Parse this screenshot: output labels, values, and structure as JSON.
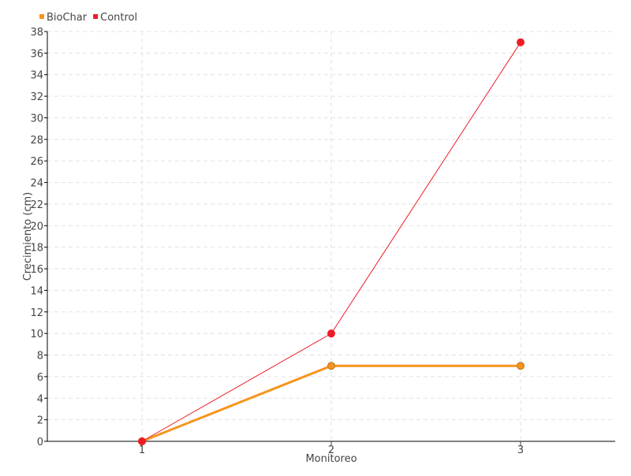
{
  "chart_data": {
    "type": "line",
    "title": "",
    "xlabel": "Monitoreo",
    "ylabel": "Crecimiento (cm)",
    "categories": [
      "1",
      "2",
      "3"
    ],
    "ylim": [
      0,
      38
    ],
    "ytick_step": 2,
    "grid": true,
    "legend_placement": "top-left",
    "series": [
      {
        "name": "BioChar",
        "values": [
          0,
          7,
          7
        ],
        "color": "#f7941d"
      },
      {
        "name": "Control",
        "values": [
          0,
          10,
          37
        ],
        "color": "#ed1c24"
      }
    ]
  }
}
